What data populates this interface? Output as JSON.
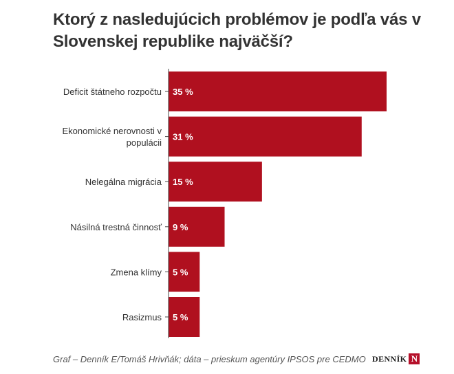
{
  "chart_data": {
    "type": "bar",
    "orientation": "horizontal",
    "title": "Ktorý z nasledujúcich problémov je podľa vás v Slovenskej republike najväčší?",
    "categories": [
      [
        "Deficit štátneho rozpočtu"
      ],
      [
        "Ekonomické nerovnosti v",
        "populácii"
      ],
      [
        "Nelegálna migrácia"
      ],
      [
        "Násilná trestná činnosť"
      ],
      [
        "Zmena klímy"
      ],
      [
        "Rasizmus"
      ]
    ],
    "values": [
      35,
      31,
      15,
      9,
      5,
      5
    ],
    "value_labels": [
      "35 %",
      "31 %",
      "15 %",
      "9 %",
      "5 %",
      "5 %"
    ],
    "unit": "%",
    "bar_color": "#b0101f",
    "xlim": [
      0,
      35
    ],
    "grid": false,
    "legend": "none"
  },
  "footer": {
    "source": "Graf – Denník E/Tomáš Hrivňák; dáta – prieskum agentúry IPSOS pre CEDMO",
    "logo_text": "DENNÍK",
    "logo_letter": "N"
  }
}
